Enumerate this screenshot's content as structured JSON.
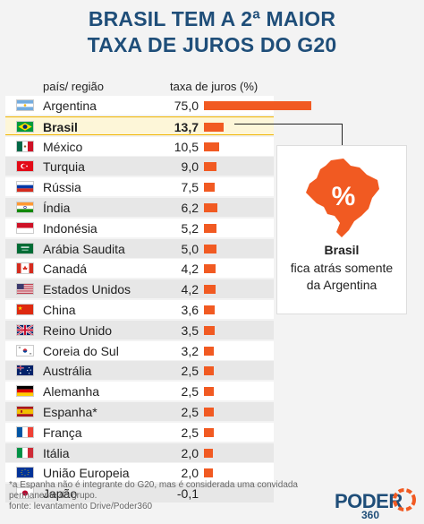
{
  "title_line1": "BRASIL TEM A 2ª MAIOR",
  "title_line2": "TAXA DE JUROS DO G20",
  "chart_data": {
    "type": "bar",
    "column_headers": [
      "país/ região",
      "taxa de juros (%)"
    ],
    "categories": [
      "Argentina",
      "Brasil",
      "México",
      "Turquia",
      "Rússia",
      "Índia",
      "Indonésia",
      "Arábia Saudita",
      "Canadá",
      "Estados Unidos",
      "China",
      "Reino Unido",
      "Coreia do Sul",
      "Austrália",
      "Alemanha",
      "Espanha*",
      "França",
      "Itália",
      "União Europeia",
      "Japão"
    ],
    "value_labels": [
      "75,0",
      "13,7",
      "10,5",
      "9,0",
      "7,5",
      "6,2",
      "5,2",
      "5,0",
      "4,2",
      "4,2",
      "3,6",
      "3,5",
      "3,2",
      "2,5",
      "2,5",
      "2,5",
      "2,5",
      "2,0",
      "2,0",
      "-0,1"
    ],
    "values": [
      75.0,
      13.7,
      10.5,
      9.0,
      7.5,
      6.2,
      5.2,
      5.0,
      4.2,
      4.2,
      3.6,
      3.5,
      3.2,
      2.5,
      2.5,
      2.5,
      2.5,
      2.0,
      2.0,
      -0.1
    ],
    "highlight": "Brasil",
    "bar_color": "#f15a22",
    "highlight_color": "#fdf6d8"
  },
  "flags": [
    "argentina-flag",
    "brazil-flag",
    "mexico-flag",
    "turkey-flag",
    "russia-flag",
    "india-flag",
    "indonesia-flag",
    "saudi-arabia-flag",
    "canada-flag",
    "usa-flag",
    "china-flag",
    "uk-flag",
    "south-korea-flag",
    "australia-flag",
    "germany-flag",
    "spain-flag",
    "france-flag",
    "italy-flag",
    "eu-flag",
    "japan-flag"
  ],
  "callout": {
    "icon": "brazil-map-percent-icon",
    "bold": "Brasil",
    "line2": "fica atrás somente",
    "line3": "da Argentina"
  },
  "footnote_1": "*a Espanha não é integrante do G20, mas é considerada uma convidada",
  "footnote_2": "permanente do grupo.",
  "footnote_3": "fonte: levantamento Drive/Poder360",
  "logo": "PODER",
  "logo_sub": "360",
  "colors": {
    "title": "#1f4e79",
    "bar": "#f15a22"
  }
}
